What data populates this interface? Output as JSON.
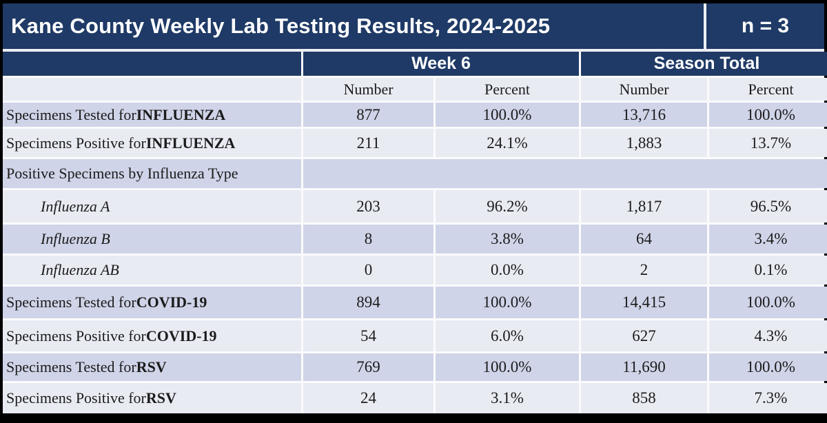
{
  "chart_data": {
    "type": "table",
    "title": "Kane County Weekly Lab Testing Results, 2024-2025",
    "n_label": "n = 3",
    "column_groups": [
      {
        "label": "Week 6",
        "span": 2
      },
      {
        "label": "Season Total",
        "span": 2
      }
    ],
    "sub_headers": [
      "Number",
      "Percent",
      "Number",
      "Percent"
    ],
    "rows": [
      {
        "label_prefix": "Specimens Tested for ",
        "label_bold": "INFLUENZA",
        "indent": false,
        "merged_empty": false,
        "values": [
          "877",
          "100.0%",
          "13,716",
          "100.0%"
        ]
      },
      {
        "label_prefix": "Specimens Positive for ",
        "label_bold": "INFLUENZA",
        "indent": false,
        "merged_empty": false,
        "values": [
          "211",
          "24.1%",
          "1,883",
          "13.7%"
        ]
      },
      {
        "label_prefix": "Positive Specimens by Influenza Type",
        "label_bold": "",
        "indent": false,
        "merged_empty": true,
        "values": [
          "",
          "",
          "",
          ""
        ]
      },
      {
        "label_prefix": "Influenza A",
        "label_bold": "",
        "indent": true,
        "merged_empty": false,
        "values": [
          "203",
          "96.2%",
          "1,817",
          "96.5%"
        ]
      },
      {
        "label_prefix": "Influenza B",
        "label_bold": "",
        "indent": true,
        "merged_empty": false,
        "values": [
          "8",
          "3.8%",
          "64",
          "3.4%"
        ]
      },
      {
        "label_prefix": "Influenza AB",
        "label_bold": "",
        "indent": true,
        "merged_empty": false,
        "values": [
          "0",
          "0.0%",
          "2",
          "0.1%"
        ]
      },
      {
        "label_prefix": "Specimens Tested for ",
        "label_bold": "COVID-19",
        "indent": false,
        "merged_empty": false,
        "values": [
          "894",
          "100.0%",
          "14,415",
          "100.0%"
        ]
      },
      {
        "label_prefix": "Specimens Positive for ",
        "label_bold": "COVID-19",
        "indent": false,
        "merged_empty": false,
        "values": [
          "54",
          "6.0%",
          "627",
          "4.3%"
        ]
      },
      {
        "label_prefix": "Specimens Tested for ",
        "label_bold": "RSV",
        "indent": false,
        "merged_empty": false,
        "values": [
          "769",
          "100.0%",
          "11,690",
          "100.0%"
        ]
      },
      {
        "label_prefix": "Specimens Positive for ",
        "label_bold": "RSV",
        "indent": false,
        "merged_empty": false,
        "values": [
          "24",
          "3.1%",
          "858",
          "7.3%"
        ]
      }
    ]
  },
  "colors": {
    "header_navy": "#1F3A66",
    "band_dark": "#CFD4E8",
    "band_light": "#E9EBF3",
    "frame_black": "#000000",
    "gridline_white": "#FBFBFD",
    "header_text": "#FFFFFF",
    "body_text": "#1B1B1B"
  }
}
